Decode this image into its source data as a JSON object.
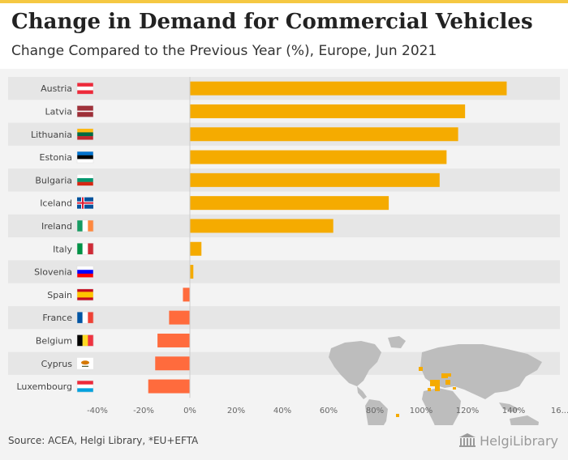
{
  "header": {
    "title": "Change in Demand for Commercial Vehicles",
    "subtitle": "Change Compared to the Previous Year (%), Europe, Jun 2021"
  },
  "footer": {
    "source": "Source: ACEA, Helgi Library, *EU+EFTA",
    "brand": "HelgiLibrary"
  },
  "colors": {
    "positive": "#f5ab00",
    "negative": "#ff6b3d",
    "accent": "#f5c842",
    "band": "#e6e6e6",
    "map": "#bdbdbd"
  },
  "chart_data": {
    "type": "bar",
    "orientation": "horizontal",
    "categories": [
      "Austria",
      "Latvia",
      "Lithuania",
      "Estonia",
      "Bulgaria",
      "Iceland",
      "Ireland",
      "Italy",
      "Slovenia",
      "Spain",
      "France",
      "Belgium",
      "Cyprus",
      "Luxembourg"
    ],
    "values": [
      137,
      119,
      116,
      111,
      108,
      86,
      62,
      5,
      1.5,
      -3,
      -9,
      -14,
      -15,
      -18
    ],
    "flags": [
      "austria-flag",
      "latvia-flag",
      "lithuania-flag",
      "estonia-flag",
      "bulgaria-flag",
      "iceland-flag",
      "ireland-flag",
      "italy-flag",
      "slovenia-flag",
      "spain-flag",
      "france-flag",
      "belgium-flag",
      "cyprus-flag",
      "luxembourg-flag"
    ],
    "xticks": [
      "-40%",
      "-20%",
      "0%",
      "20%",
      "40%",
      "60%",
      "80%",
      "100%",
      "120%",
      "140%",
      "16..."
    ],
    "xlim": [
      -40,
      160
    ],
    "xlabel": "",
    "ylabel": "",
    "grid": false,
    "legend": "none"
  }
}
